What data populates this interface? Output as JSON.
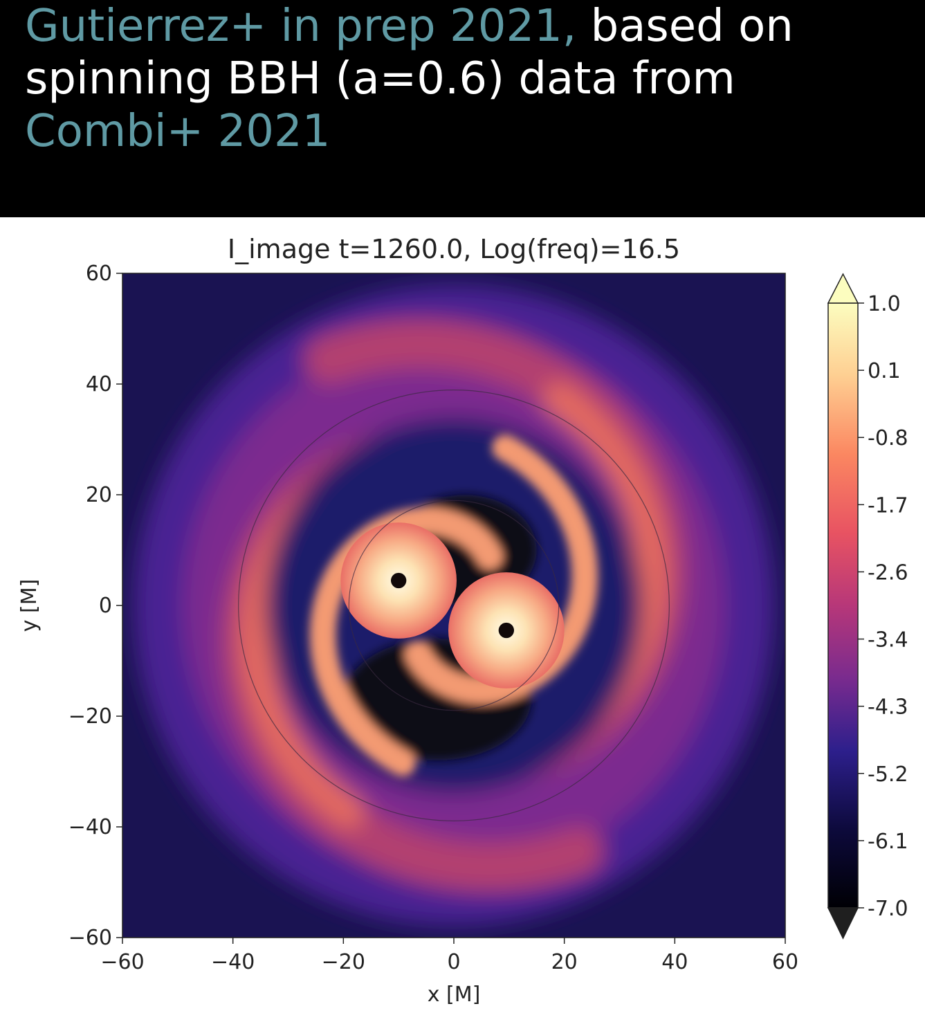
{
  "caption": {
    "ref1": "Gutierrez+ in prep 2021,",
    "text1": " based on",
    "text2": "spinning BBH (a=0.6) data from",
    "ref2": "Combi+ 2021",
    "ref_color": "#5f9aa4"
  },
  "chart_data": {
    "type": "heatmap",
    "title": "I_image   t=1260.0,  Log(freq)=16.5",
    "xlabel": "x [M]",
    "ylabel": "y [M]",
    "xlim": [
      -60,
      60
    ],
    "ylim": [
      -60,
      60
    ],
    "xticks": [
      -60,
      -40,
      -20,
      0,
      20,
      40,
      60
    ],
    "yticks": [
      -60,
      -40,
      -20,
      0,
      20,
      40,
      60
    ],
    "xtick_labels": [
      "−60",
      "−40",
      "−20",
      "0",
      "20",
      "40",
      "60"
    ],
    "ytick_labels": [
      "−60",
      "−40",
      "−20",
      "0",
      "20",
      "40",
      "60"
    ],
    "colorbar": {
      "ticks": [
        1.0,
        0.1,
        -0.8,
        -1.7,
        -2.6,
        -3.4,
        -4.3,
        -5.2,
        -6.1,
        -7.0
      ],
      "tick_labels": [
        "1.0",
        "0.1",
        "-0.8",
        "-1.7",
        "-2.6",
        "-3.4",
        "-4.3",
        "-5.2",
        "-6.1",
        "-7.0"
      ],
      "range": [
        -7.0,
        1.0
      ],
      "extend": "both",
      "colormap": "magma"
    },
    "sources": [
      {
        "x": -10,
        "y": 4.5
      },
      {
        "x": 9.5,
        "y": -4.5
      }
    ],
    "circles_radius": [
      39,
      19
    ]
  }
}
